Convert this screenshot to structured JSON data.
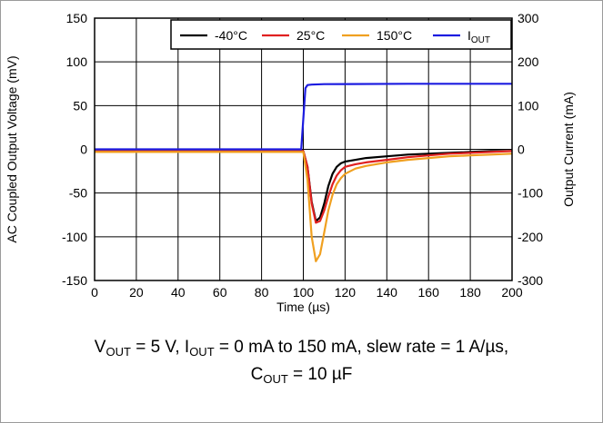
{
  "chart_data": {
    "type": "line",
    "title": "",
    "xlabel": "Time (µs)",
    "ylabel": "AC Coupled Output Voltage (mV)",
    "y2label": "Output Current (mA)",
    "xlim": [
      0,
      200
    ],
    "ylim": [
      -150,
      150
    ],
    "y2lim": [
      -300,
      300
    ],
    "xticks": [
      0,
      20,
      40,
      60,
      80,
      100,
      120,
      140,
      160,
      180,
      200
    ],
    "yticks": [
      -150,
      -100,
      -50,
      0,
      50,
      100,
      150
    ],
    "y2ticks": [
      -300,
      -200,
      -100,
      0,
      100,
      200,
      300
    ],
    "grid": true,
    "legend_position": "top-right",
    "series": [
      {
        "name": "-40°C",
        "axis": "left",
        "color": "#000000",
        "x": [
          0,
          99,
          100,
          102,
          104,
          106,
          108,
          110,
          112,
          114,
          116,
          118,
          120,
          125,
          130,
          140,
          150,
          160,
          170,
          180,
          190,
          200
        ],
        "y": [
          -2,
          -2,
          -2,
          -20,
          -60,
          -82,
          -78,
          -62,
          -42,
          -28,
          -20,
          -16,
          -14,
          -12,
          -10,
          -8,
          -6,
          -5,
          -4,
          -3,
          -2,
          -2
        ]
      },
      {
        "name": "25°C",
        "axis": "left",
        "color": "#e02020",
        "x": [
          0,
          99,
          100,
          102,
          104,
          106,
          108,
          110,
          112,
          114,
          116,
          118,
          120,
          125,
          130,
          140,
          150,
          160,
          170,
          180,
          190,
          200
        ],
        "y": [
          -2,
          -2,
          -2,
          -20,
          -62,
          -84,
          -82,
          -70,
          -54,
          -40,
          -30,
          -24,
          -20,
          -17,
          -15,
          -12,
          -9,
          -7,
          -5,
          -4,
          -3,
          -2
        ]
      },
      {
        "name": "150°C",
        "axis": "left",
        "color": "#f0a020",
        "x": [
          0,
          99,
          100,
          102,
          104,
          106,
          108,
          110,
          112,
          114,
          116,
          118,
          120,
          125,
          130,
          140,
          150,
          160,
          170,
          180,
          190,
          200
        ],
        "y": [
          -3,
          -3,
          -3,
          -35,
          -100,
          -128,
          -120,
          -95,
          -70,
          -52,
          -40,
          -33,
          -28,
          -22,
          -19,
          -15,
          -12,
          -10,
          -8,
          -7,
          -6,
          -5
        ]
      },
      {
        "name": "IOUT",
        "axis": "right",
        "color": "#1c1ce0",
        "x": [
          0,
          99,
          100,
          101,
          102,
          104,
          110,
          150,
          200
        ],
        "y": [
          0,
          0,
          70,
          140,
          147,
          148,
          149,
          150,
          150
        ]
      }
    ]
  },
  "legend": {
    "items": [
      {
        "prefix": "-40°C",
        "sub": "",
        "color": "#000000"
      },
      {
        "prefix": "25°C",
        "sub": "",
        "color": "#e02020"
      },
      {
        "prefix": "150°C",
        "sub": "",
        "color": "#f0a020"
      },
      {
        "prefix": "I",
        "sub": "OUT",
        "color": "#1c1ce0"
      }
    ]
  },
  "caption": {
    "line1": {
      "v": "V",
      "v_sub": "OUT",
      "mid1": " = 5 V, I",
      "i_sub": "OUT",
      "rest": " = 0 mA to 150 mA, slew rate = 1 A/µs,"
    },
    "line2": {
      "c": "C",
      "c_sub": "OUT",
      "rest": " = 10 µF"
    }
  }
}
